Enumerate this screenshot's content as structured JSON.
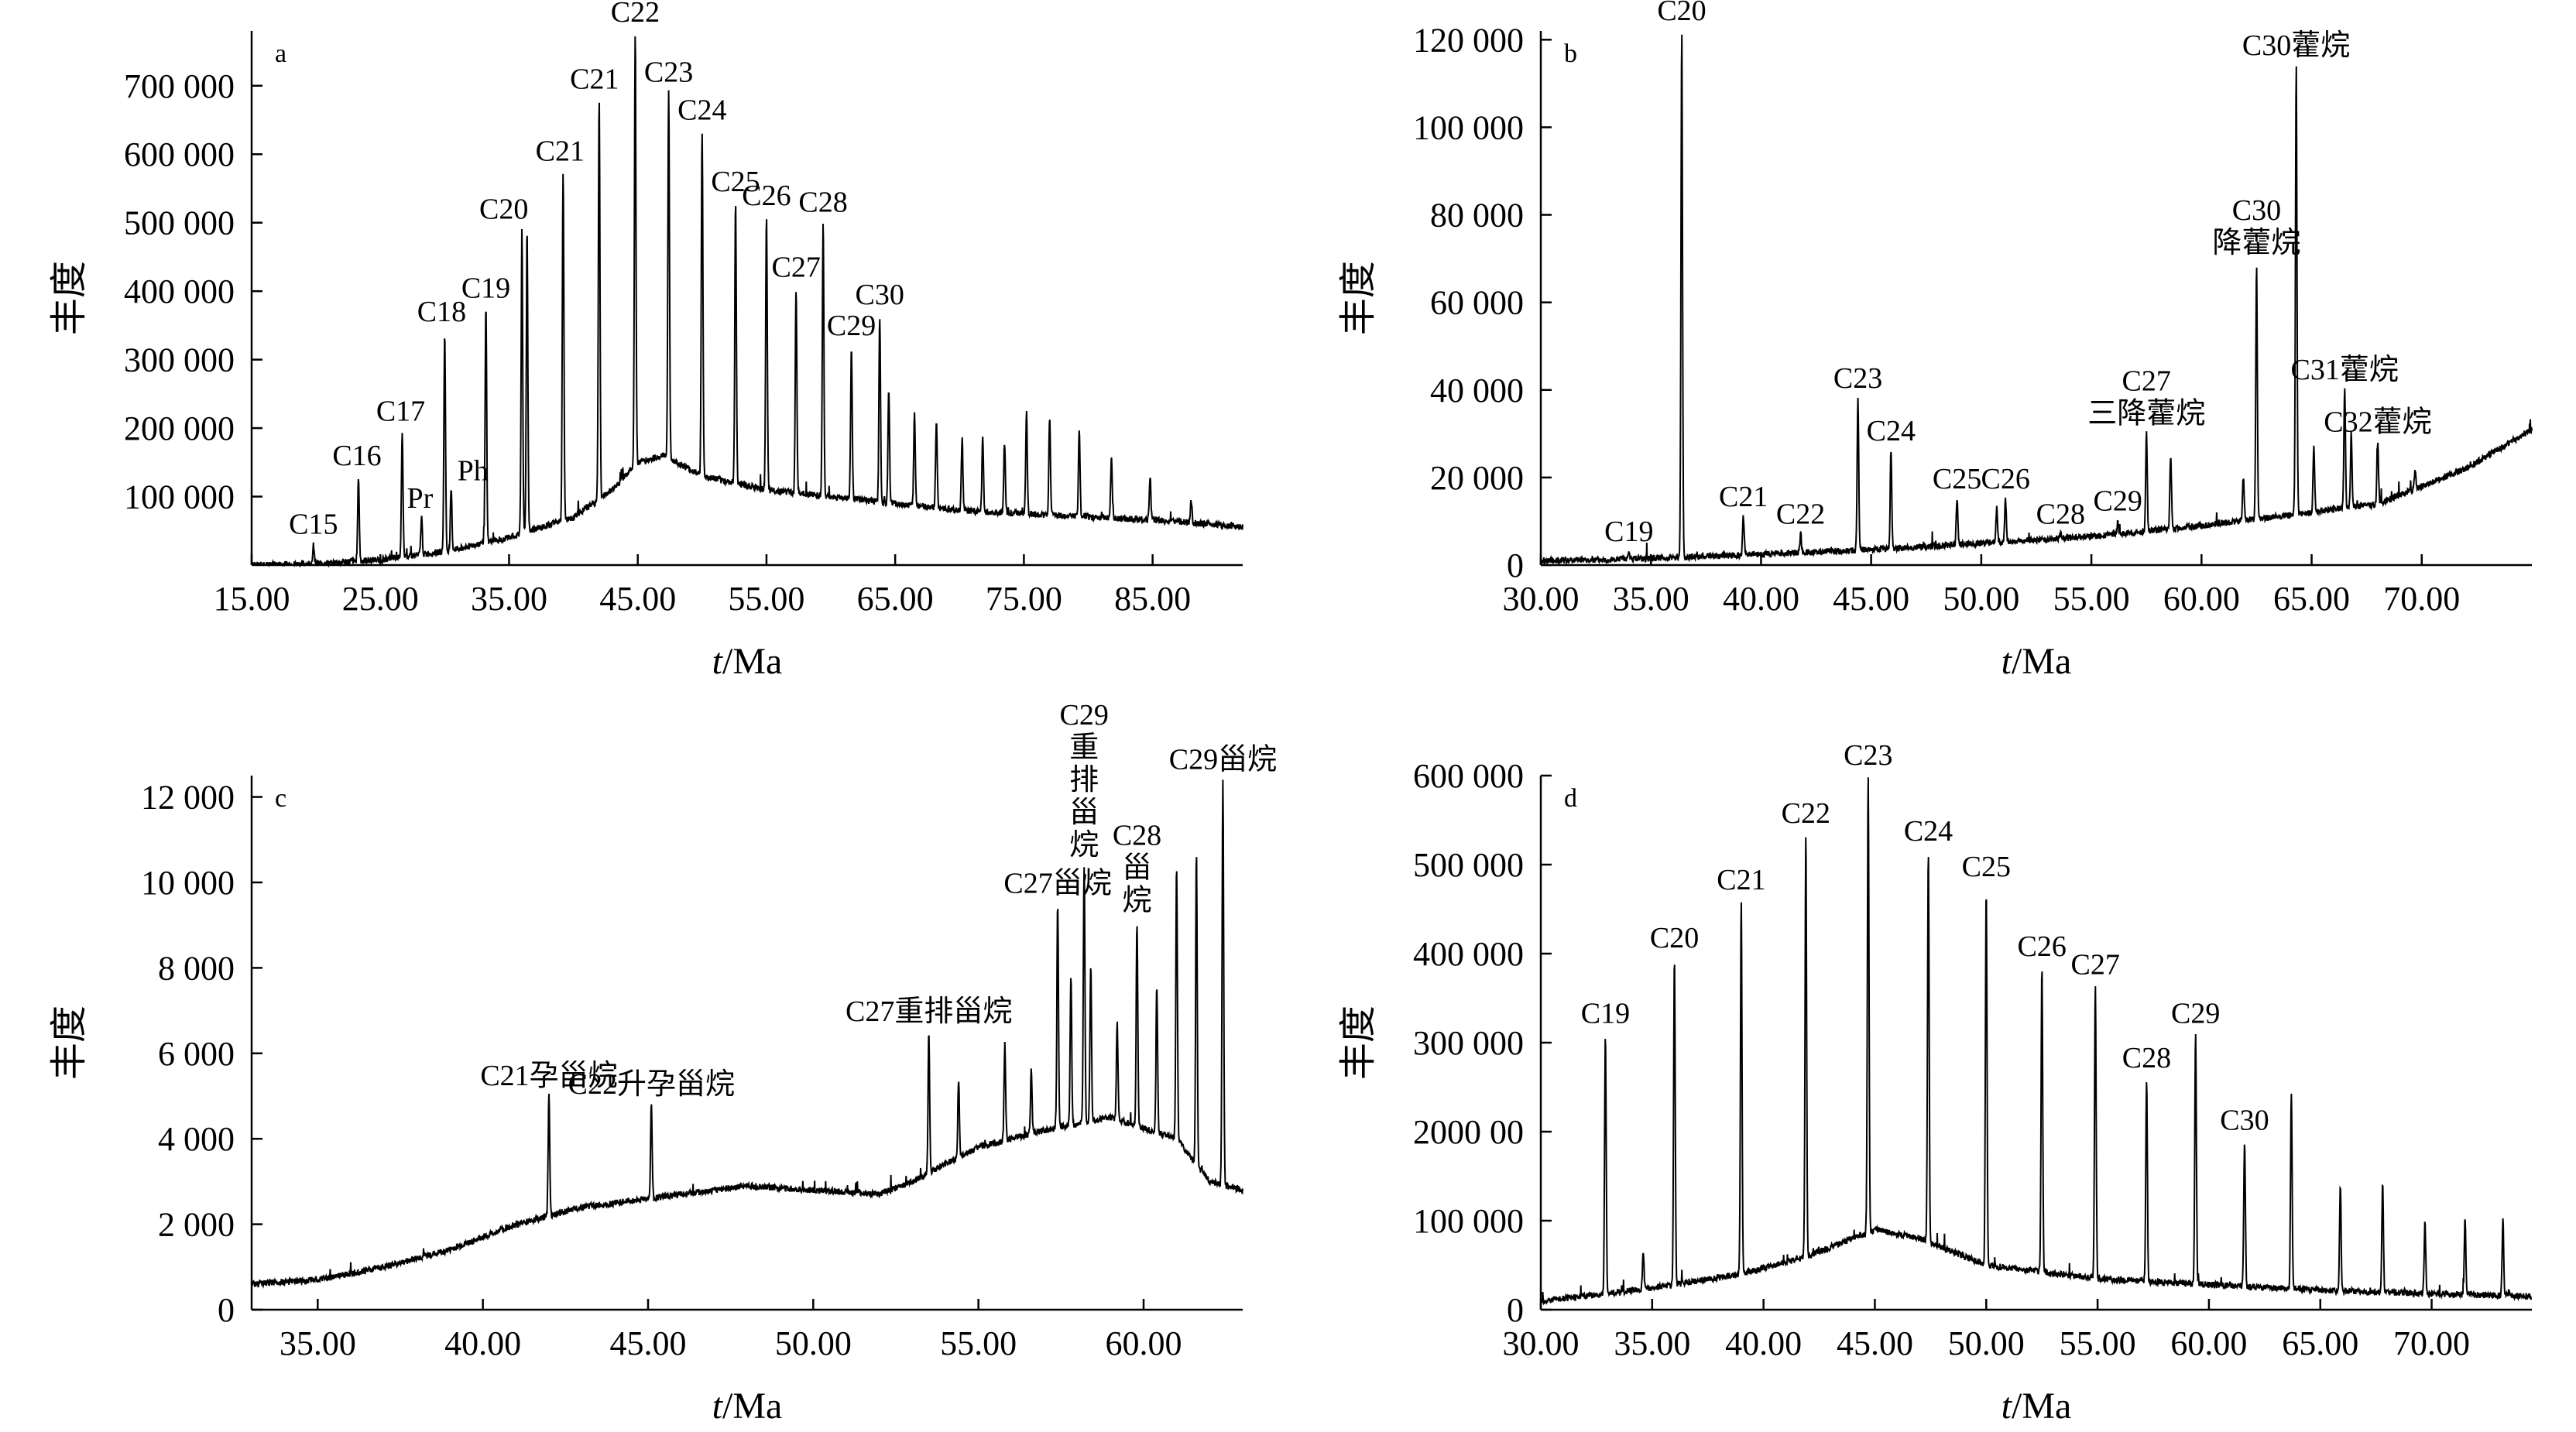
{
  "chart_data": [
    {
      "id": "a",
      "type": "line",
      "panel_letter": "a",
      "ylabel": "丰度",
      "xlabel_italic": "t",
      "xlabel_unit": "/Ma",
      "xlim": [
        15,
        92
      ],
      "ylim": [
        0,
        780000
      ],
      "x_ticks": [
        "15.00",
        "25.00",
        "35.00",
        "45.00",
        "55.00",
        "65.00",
        "75.00",
        "85.00"
      ],
      "x_tick_values": [
        15,
        25,
        35,
        45,
        55,
        65,
        75,
        85
      ],
      "y_ticks": [
        "100 000",
        "200 000",
        "300 000",
        "400 000",
        "500 000",
        "600 000",
        "700 000"
      ],
      "y_tick_values": [
        100000,
        200000,
        300000,
        400000,
        500000,
        600000,
        700000
      ],
      "baseline": [
        [
          15,
          0
        ],
        [
          20,
          2000
        ],
        [
          25,
          8000
        ],
        [
          30,
          20000
        ],
        [
          35,
          40000
        ],
        [
          40,
          70000
        ],
        [
          43,
          110000
        ],
        [
          45,
          150000
        ],
        [
          47,
          160000
        ],
        [
          50,
          130000
        ],
        [
          55,
          110000
        ],
        [
          60,
          100000
        ],
        [
          65,
          90000
        ],
        [
          70,
          80000
        ],
        [
          75,
          75000
        ],
        [
          80,
          70000
        ],
        [
          85,
          66000
        ],
        [
          92,
          56000
        ]
      ],
      "peaks": [
        {
          "x": 19.8,
          "y": 30000,
          "label": "C15"
        },
        {
          "x": 23.3,
          "y": 130000,
          "label": "C16"
        },
        {
          "x": 26.7,
          "y": 195000,
          "label": "C17"
        },
        {
          "x": 28.2,
          "y": 70000,
          "label": "Pr"
        },
        {
          "x": 30.0,
          "y": 340000,
          "label": "C18"
        },
        {
          "x": 30.5,
          "y": 110000,
          "label": "Ph"
        },
        {
          "x": 33.2,
          "y": 375000,
          "label": "C19"
        },
        {
          "x": 36.4,
          "y": 490000,
          "label": "C20"
        },
        {
          "x": 39.2,
          "y": 575000,
          "label": "C21"
        },
        {
          "x": 42.0,
          "y": 680000,
          "label": "C21"
        },
        {
          "x": 44.8,
          "y": 780000,
          "label": "C22"
        },
        {
          "x": 47.4,
          "y": 690000,
          "label": "C23"
        },
        {
          "x": 50.0,
          "y": 635000,
          "label": "C24"
        },
        {
          "x": 52.6,
          "y": 530000,
          "label": "C25"
        },
        {
          "x": 55.0,
          "y": 510000,
          "label": "C26"
        },
        {
          "x": 57.3,
          "y": 405000,
          "label": "C27"
        },
        {
          "x": 59.4,
          "y": 500000,
          "label": "C28"
        },
        {
          "x": 61.6,
          "y": 320000,
          "label": "C29"
        },
        {
          "x": 63.8,
          "y": 365000,
          "label": "C30"
        },
        {
          "x": 36.0,
          "y": 490000,
          "label": ""
        },
        {
          "x": 64.5,
          "y": 260000,
          "label": ""
        },
        {
          "x": 66.5,
          "y": 220000,
          "label": ""
        },
        {
          "x": 68.2,
          "y": 210000,
          "label": ""
        },
        {
          "x": 70.2,
          "y": 185000,
          "label": ""
        },
        {
          "x": 71.8,
          "y": 185000,
          "label": ""
        },
        {
          "x": 73.5,
          "y": 175000,
          "label": ""
        },
        {
          "x": 75.2,
          "y": 225000,
          "label": ""
        },
        {
          "x": 77.0,
          "y": 215000,
          "label": ""
        },
        {
          "x": 79.3,
          "y": 195000,
          "label": ""
        },
        {
          "x": 81.8,
          "y": 160000,
          "label": ""
        },
        {
          "x": 84.8,
          "y": 130000,
          "label": ""
        },
        {
          "x": 88.0,
          "y": 95000,
          "label": ""
        }
      ]
    },
    {
      "id": "b",
      "type": "line",
      "panel_letter": "b",
      "ylabel": "丰度",
      "xlabel_italic": "t",
      "xlabel_unit": "/Ma",
      "xlim": [
        30,
        75
      ],
      "ylim": [
        0,
        122000
      ],
      "x_ticks": [
        "30.00",
        "35.00",
        "40.00",
        "45.00",
        "50.00",
        "55.00",
        "60.00",
        "65.00",
        "70.00"
      ],
      "x_tick_values": [
        30,
        35,
        40,
        45,
        50,
        55,
        60,
        65,
        70
      ],
      "y_ticks": [
        "0",
        "20 000",
        "40 000",
        "60 000",
        "80 000",
        "100 000",
        "120 000"
      ],
      "y_tick_values": [
        0,
        20000,
        40000,
        60000,
        80000,
        100000,
        120000
      ],
      "baseline": [
        [
          30,
          1000
        ],
        [
          35,
          1500
        ],
        [
          40,
          2500
        ],
        [
          45,
          3500
        ],
        [
          50,
          5000
        ],
        [
          55,
          6500
        ],
        [
          60,
          9000
        ],
        [
          65,
          12000
        ],
        [
          68,
          14000
        ],
        [
          70,
          18000
        ],
        [
          72,
          22000
        ],
        [
          75,
          31000
        ]
      ],
      "peaks": [
        {
          "x": 34.0,
          "y": 3000,
          "label": "C19"
        },
        {
          "x": 36.4,
          "y": 122000,
          "label": "C20"
        },
        {
          "x": 39.2,
          "y": 11000,
          "label": "C21"
        },
        {
          "x": 41.8,
          "y": 7000,
          "label": "C22"
        },
        {
          "x": 44.4,
          "y": 38000,
          "label": "C23"
        },
        {
          "x": 45.9,
          "y": 26000,
          "label": "C24"
        },
        {
          "x": 48.9,
          "y": 15000,
          "label": "C25"
        },
        {
          "x": 51.1,
          "y": 15000,
          "label": "C26"
        },
        {
          "x": 53.6,
          "y": 7000,
          "label": "C28"
        },
        {
          "x": 56.2,
          "y": 10000,
          "label": "C29"
        },
        {
          "x": 57.5,
          "y": 30000,
          "label": "C27 三降藿烷"
        },
        {
          "x": 62.5,
          "y": 69000,
          "label": "C30 降藿烷"
        },
        {
          "x": 64.3,
          "y": 114000,
          "label": "C30藿烷"
        },
        {
          "x": 66.5,
          "y": 40000,
          "label": "C31藿烷"
        },
        {
          "x": 68.0,
          "y": 28000,
          "label": "C32藿烷"
        },
        {
          "x": 50.7,
          "y": 13000,
          "label": ""
        },
        {
          "x": 58.6,
          "y": 25000,
          "label": ""
        },
        {
          "x": 61.9,
          "y": 20000,
          "label": ""
        },
        {
          "x": 65.1,
          "y": 27000,
          "label": ""
        },
        {
          "x": 66.8,
          "y": 30000,
          "label": ""
        },
        {
          "x": 69.7,
          "y": 22000,
          "label": ""
        }
      ]
    },
    {
      "id": "c",
      "type": "line",
      "panel_letter": "c",
      "ylabel": "丰度",
      "xlabel_italic": "t",
      "xlabel_unit": "/Ma",
      "xlim": [
        33,
        63
      ],
      "ylim": [
        0,
        12500
      ],
      "x_ticks": [
        "35.00",
        "40.00",
        "45.00",
        "50.00",
        "55.00",
        "60.00"
      ],
      "x_tick_values": [
        35,
        40,
        45,
        50,
        55,
        60
      ],
      "y_ticks": [
        "0",
        "2 000",
        "4 000",
        "6 000",
        "8 000",
        "10 000",
        "12 000"
      ],
      "y_tick_values": [
        0,
        2000,
        4000,
        6000,
        8000,
        10000,
        12000
      ],
      "baseline": [
        [
          33,
          600
        ],
        [
          35,
          700
        ],
        [
          37,
          1000
        ],
        [
          39,
          1400
        ],
        [
          41,
          2000
        ],
        [
          43,
          2400
        ],
        [
          45,
          2600
        ],
        [
          48,
          2900
        ],
        [
          50,
          2800
        ],
        [
          52,
          2700
        ],
        [
          53,
          3000
        ],
        [
          55,
          3800
        ],
        [
          57,
          4200
        ],
        [
          59,
          4500
        ],
        [
          61,
          4000
        ],
        [
          62,
          3000
        ],
        [
          63,
          2800
        ]
      ],
      "peaks": [
        {
          "x": 42.0,
          "y": 5000,
          "label": "C21孕甾烷"
        },
        {
          "x": 45.1,
          "y": 4800,
          "label": "C22升孕甾烷"
        },
        {
          "x": 53.5,
          "y": 6500,
          "label": "C27重排甾烷"
        },
        {
          "x": 57.4,
          "y": 9500,
          "label": "C27甾烷"
        },
        {
          "x": 58.2,
          "y": 10400,
          "label": "C29 重 排 甾 烷"
        },
        {
          "x": 59.8,
          "y": 9100,
          "label": "C28 甾 烷"
        },
        {
          "x": 62.4,
          "y": 12400,
          "label": "C29甾烷"
        },
        {
          "x": 54.4,
          "y": 5400,
          "label": ""
        },
        {
          "x": 55.8,
          "y": 6200,
          "label": ""
        },
        {
          "x": 56.6,
          "y": 5600,
          "label": ""
        },
        {
          "x": 57.8,
          "y": 7800,
          "label": ""
        },
        {
          "x": 58.4,
          "y": 8100,
          "label": ""
        },
        {
          "x": 59.2,
          "y": 6700,
          "label": ""
        },
        {
          "x": 60.4,
          "y": 7600,
          "label": ""
        },
        {
          "x": 61.0,
          "y": 10400,
          "label": ""
        },
        {
          "x": 61.6,
          "y": 10700,
          "label": ""
        }
      ]
    },
    {
      "id": "d",
      "type": "line",
      "panel_letter": "d",
      "ylabel": "丰度",
      "xlabel_italic": "t",
      "xlabel_unit": "/Ma",
      "xlim": [
        30,
        74.5
      ],
      "ylim": [
        0,
        600000
      ],
      "x_ticks": [
        "30.00",
        "35.00",
        "40.00",
        "45.00",
        "50.00",
        "55.00",
        "60.00",
        "65.00",
        "70.00"
      ],
      "x_tick_values": [
        30,
        35,
        40,
        45,
        50,
        55,
        60,
        65,
        70
      ],
      "y_ticks": [
        "0",
        "100 000",
        "2000 00",
        "300 000",
        "400 000",
        "500 000",
        "600 000"
      ],
      "y_tick_values": [
        0,
        100000,
        200000,
        300000,
        400000,
        500000,
        600000
      ],
      "baseline": [
        [
          30,
          10000
        ],
        [
          33,
          18000
        ],
        [
          36,
          28000
        ],
        [
          39,
          40000
        ],
        [
          42,
          60000
        ],
        [
          44,
          80000
        ],
        [
          45,
          90000
        ],
        [
          47,
          80000
        ],
        [
          50,
          50000
        ],
        [
          55,
          35000
        ],
        [
          60,
          28000
        ],
        [
          65,
          22000
        ],
        [
          70,
          18000
        ],
        [
          74.5,
          15000
        ]
      ],
      "peaks": [
        {
          "x": 32.9,
          "y": 310000,
          "label": "C19"
        },
        {
          "x": 36.0,
          "y": 395000,
          "label": "C20"
        },
        {
          "x": 39.0,
          "y": 460000,
          "label": "C21"
        },
        {
          "x": 41.9,
          "y": 535000,
          "label": "C22"
        },
        {
          "x": 44.7,
          "y": 600000,
          "label": "C23"
        },
        {
          "x": 47.4,
          "y": 515000,
          "label": "C24"
        },
        {
          "x": 50.0,
          "y": 475000,
          "label": "C25"
        },
        {
          "x": 52.5,
          "y": 385000,
          "label": "C26"
        },
        {
          "x": 54.9,
          "y": 365000,
          "label": "C27"
        },
        {
          "x": 57.2,
          "y": 260000,
          "label": "C28"
        },
        {
          "x": 59.4,
          "y": 310000,
          "label": "C29"
        },
        {
          "x": 61.6,
          "y": 190000,
          "label": "C30"
        },
        {
          "x": 63.7,
          "y": 245000,
          "label": ""
        },
        {
          "x": 65.9,
          "y": 140000,
          "label": ""
        },
        {
          "x": 67.8,
          "y": 140000,
          "label": ""
        },
        {
          "x": 69.7,
          "y": 100000,
          "label": ""
        },
        {
          "x": 71.5,
          "y": 105000,
          "label": ""
        },
        {
          "x": 73.2,
          "y": 100000,
          "label": ""
        },
        {
          "x": 34.6,
          "y": 65000,
          "label": ""
        }
      ]
    }
  ]
}
